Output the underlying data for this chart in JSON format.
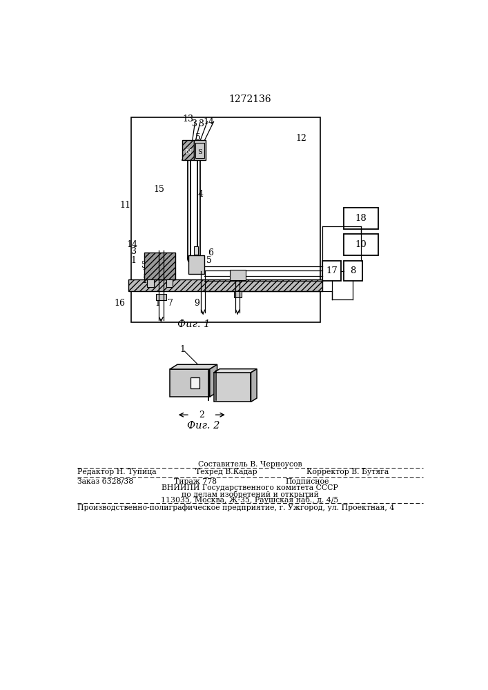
{
  "title": "1272136",
  "fig1_caption": "Фиг. 1",
  "fig2_caption": "Фиг. 2",
  "bg_color": "#ffffff",
  "line_color": "#000000",
  "footer": {
    "sestavitel": "Составитель В. Черноусов",
    "redaktor": "Редактор Н. Тупица",
    "tehred": "Техред В.Кадар",
    "korrektor": "Корректор В. Бутяга",
    "zakaz": "Заказ 6328/38",
    "tirazh": "Тираж 778",
    "podpisnoe": "Подписное",
    "vniipи": "ВНИИПИ Государственного комитета СССР",
    "podelam": "по делам изобретений и открытий",
    "address": "113035, Москва, Ж-35, Раушская наб., д. 4/5",
    "enterprise": "Производственно-полиграфическое предприятие, г. Ужгород, ул. Проектная, 4"
  }
}
